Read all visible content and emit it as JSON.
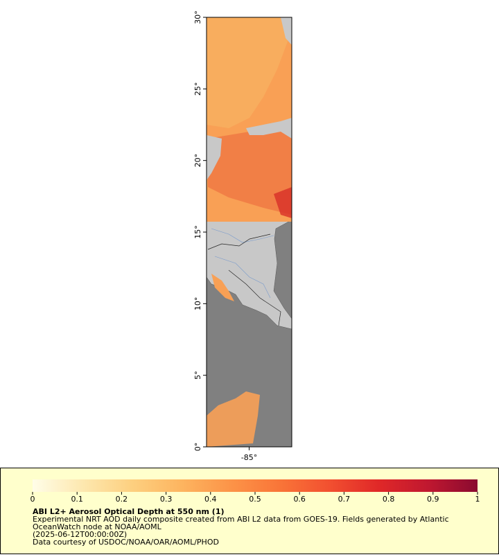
{
  "map": {
    "lat_range": [
      0,
      30
    ],
    "lon_range": [
      -88,
      -82
    ],
    "lat_ticks": [
      {
        "value": 0,
        "label": "0°"
      },
      {
        "value": 5,
        "label": "5°"
      },
      {
        "value": 10,
        "label": "10°"
      },
      {
        "value": 15,
        "label": "15°"
      },
      {
        "value": 20,
        "label": "20°"
      },
      {
        "value": 25,
        "label": "25°"
      },
      {
        "value": 30,
        "label": "30°"
      }
    ],
    "lon_ticks": [
      {
        "value": -85,
        "label": "-85°"
      }
    ]
  },
  "colorbar": {
    "ticks": [
      0,
      0.1,
      0.2,
      0.3,
      0.4,
      0.5,
      0.6,
      0.7,
      0.8,
      0.9,
      1
    ],
    "colors": [
      "#fffde8",
      "#fde8b0",
      "#fdd080",
      "#fdb560",
      "#fc9448",
      "#f97538",
      "#f25030",
      "#e02828",
      "#c01830",
      "#8a0a30"
    ]
  },
  "legend": {
    "title": "ABI L2+ Aerosol Optical Depth at 550 nm (1)",
    "description": "Experimental NRT AOD daily composite created from ABI L2 data from GOES-19. Fields generated by Atlantic",
    "description2": "OceanWatch node at NOAA/AOML",
    "date": "(2025-06-12T00:00:00Z)",
    "credit": "Data courtesy of USDOC/NOAA/OAR/AOML/PHOD"
  }
}
